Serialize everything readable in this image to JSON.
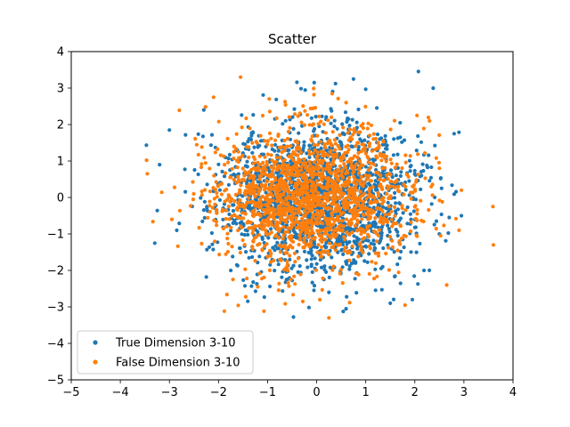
{
  "chart_data": {
    "type": "scatter",
    "title": "Scatter",
    "xlabel": "",
    "ylabel": "",
    "xlim": [
      -5,
      4
    ],
    "ylim": [
      -5,
      4
    ],
    "xticks": [
      "−5",
      "−4",
      "−3",
      "−2",
      "−1",
      "0",
      "1",
      "2",
      "3",
      "4"
    ],
    "yticks": [
      "−5",
      "−4",
      "−3",
      "−2",
      "−1",
      "0",
      "1",
      "2",
      "3",
      "4"
    ],
    "grid": false,
    "legend_position": "lower-left",
    "series": [
      {
        "name": "True Dimension 3-10",
        "color": "#1f77b4",
        "distribution": {
          "kind": "gaussian",
          "mean": [
            0,
            0
          ],
          "std": [
            1.0,
            1.0
          ],
          "count": 1800,
          "seed": 11
        },
        "points": [
          [
            -3.0,
            1.85
          ],
          [
            -3.2,
            0.9
          ],
          [
            -2.85,
            -0.9
          ],
          [
            2.8,
            1.75
          ],
          [
            0.75,
            3.25
          ],
          [
            -0.05,
            3.15
          ],
          [
            0.6,
            -3.05
          ],
          [
            1.5,
            -2.9
          ],
          [
            2.95,
            -0.5
          ],
          [
            2.7,
            -0.55
          ],
          [
            0.25,
            -2.6
          ],
          [
            -2.3,
            2.4
          ],
          [
            1.95,
            -2.8
          ],
          [
            -1.75,
            -2.0
          ],
          [
            2.5,
            -1.0
          ]
        ]
      },
      {
        "name": "False Dimension 3-10",
        "color": "#ff7f0e",
        "distribution": {
          "kind": "gaussian",
          "mean": [
            -0.1,
            0.05
          ],
          "std": [
            1.0,
            0.95
          ],
          "count": 1700,
          "seed": 29
        },
        "points": [
          [
            -3.45,
            0.65
          ],
          [
            3.6,
            -1.3
          ],
          [
            -1.55,
            3.3
          ],
          [
            0.25,
            -3.3
          ],
          [
            2.95,
            0.2
          ],
          [
            2.3,
            2.1
          ],
          [
            -2.1,
            2.75
          ],
          [
            2.65,
            -2.4
          ],
          [
            1.8,
            -2.95
          ],
          [
            -1.2,
            -2.45
          ],
          [
            -2.95,
            -0.6
          ],
          [
            2.5,
            0.8
          ],
          [
            0.6,
            2.6
          ],
          [
            -0.05,
            2.45
          ],
          [
            2.9,
            -0.9
          ]
        ]
      }
    ]
  }
}
